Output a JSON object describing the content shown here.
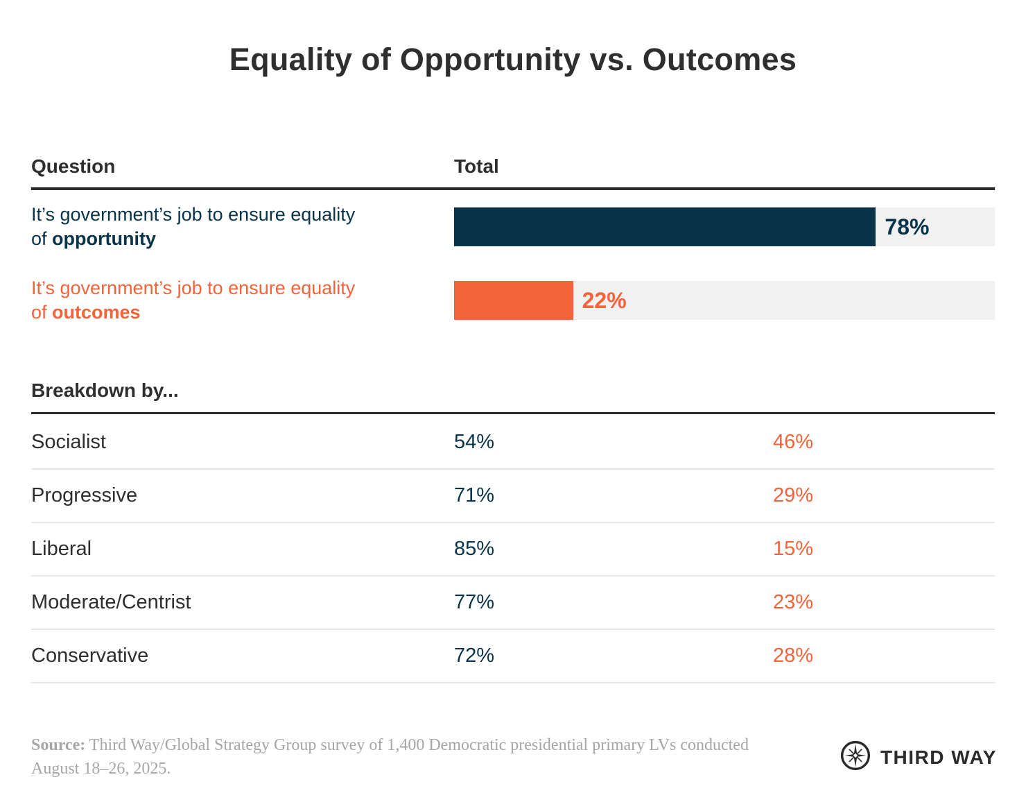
{
  "title": "Equality of Opportunity vs. Outcomes",
  "colors": {
    "navy": "#083349",
    "orange": "#f4633a",
    "track": "#f1f1f1",
    "charcoal": "#2b2b2b",
    "divider": "#e7e7e7",
    "source_gray": "#a6a6a6"
  },
  "header": {
    "question": "Question",
    "total": "Total"
  },
  "bars": [
    {
      "label_line1": "It’s government’s job to ensure equality",
      "label_line2_prefix": "of ",
      "label_line2_bold": "opportunity",
      "value": 78,
      "value_label": "78%",
      "color": "#083349"
    },
    {
      "label_line1": "It’s government’s job to ensure equality",
      "label_line2_prefix": "of ",
      "label_line2_bold": "outcomes",
      "value": 22,
      "value_label": "22%",
      "color": "#f4633a"
    }
  ],
  "breakdown": {
    "header": "Breakdown by...",
    "rows": [
      {
        "label": "Socialist",
        "opportunity": "54%",
        "outcomes": "46%"
      },
      {
        "label": "Progressive",
        "opportunity": "71%",
        "outcomes": "29%"
      },
      {
        "label": "Liberal",
        "opportunity": "85%",
        "outcomes": "15%"
      },
      {
        "label": "Moderate/Centrist",
        "opportunity": "77%",
        "outcomes": "23%"
      },
      {
        "label": "Conservative",
        "opportunity": "72%",
        "outcomes": "28%"
      }
    ]
  },
  "footer": {
    "source_label": "Source:",
    "source_text": " Third Way/Global Strategy Group survey of 1,400 Democratic presidential primary LVs conducted August 18–26, 2025.",
    "logo_text": "THIRD WAY"
  },
  "chart_data": {
    "type": "bar",
    "orientation": "horizontal",
    "title": "Equality of Opportunity vs. Outcomes",
    "columns": [
      "Question",
      "Total"
    ],
    "categories": [
      "It’s government’s job to ensure equality of opportunity",
      "It’s government’s job to ensure equality of outcomes"
    ],
    "values": [
      78,
      22
    ],
    "unit": "%",
    "xlim": [
      0,
      100
    ],
    "colors": [
      "#083349",
      "#f4633a"
    ],
    "grid": false,
    "legend": "none",
    "breakdown_table": {
      "header": "Breakdown by...",
      "categories": [
        "Socialist",
        "Progressive",
        "Liberal",
        "Moderate/Centrist",
        "Conservative"
      ],
      "series": [
        {
          "name": "It’s government’s job to ensure equality of opportunity",
          "values": [
            54,
            71,
            85,
            77,
            72
          ]
        },
        {
          "name": "It’s government’s job to ensure equality of outcomes",
          "values": [
            46,
            29,
            15,
            23,
            28
          ]
        }
      ]
    },
    "source": "Third Way/Global Strategy Group survey of 1,400 Democratic presidential primary LVs conducted August 18–26, 2025."
  }
}
